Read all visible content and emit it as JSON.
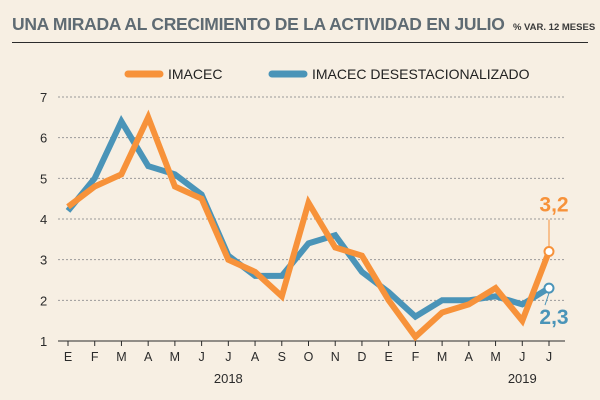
{
  "title": "UNA MIRADA AL CRECIMIENTO DE LA ACTIVIDAD EN JULIO",
  "subtitle": "% VAR. 12 MESES",
  "chart_data": {
    "type": "line",
    "categories": [
      "E",
      "F",
      "M",
      "A",
      "M",
      "J",
      "J",
      "A",
      "S",
      "O",
      "N",
      "D",
      "E",
      "F",
      "M",
      "A",
      "M",
      "J",
      "J"
    ],
    "year_labels": [
      {
        "label": "2018",
        "category_index": 6
      },
      {
        "label": "2019",
        "category_index": 17
      }
    ],
    "ylim": [
      1,
      7
    ],
    "yticks": [
      "1",
      "2",
      "3",
      "4",
      "5",
      "6",
      "7"
    ],
    "grid": true,
    "legend_position": "top",
    "series": [
      {
        "name": "IMACEC",
        "color": "#f7923a",
        "values": [
          4.3,
          4.8,
          5.1,
          6.5,
          4.8,
          4.5,
          3.0,
          2.7,
          2.1,
          4.4,
          3.3,
          3.1,
          2.0,
          1.1,
          1.7,
          1.9,
          2.3,
          1.5,
          3.2
        ],
        "end_label": "3,2"
      },
      {
        "name": "IMACEC DESESTACIONALIZADO",
        "color": "#4a94b8",
        "values": [
          4.2,
          5.0,
          6.4,
          5.3,
          5.1,
          4.6,
          3.1,
          2.6,
          2.6,
          3.4,
          3.6,
          2.7,
          2.2,
          1.6,
          2.0,
          2.0,
          2.1,
          1.9,
          2.3
        ],
        "end_label": "2,3"
      }
    ]
  }
}
